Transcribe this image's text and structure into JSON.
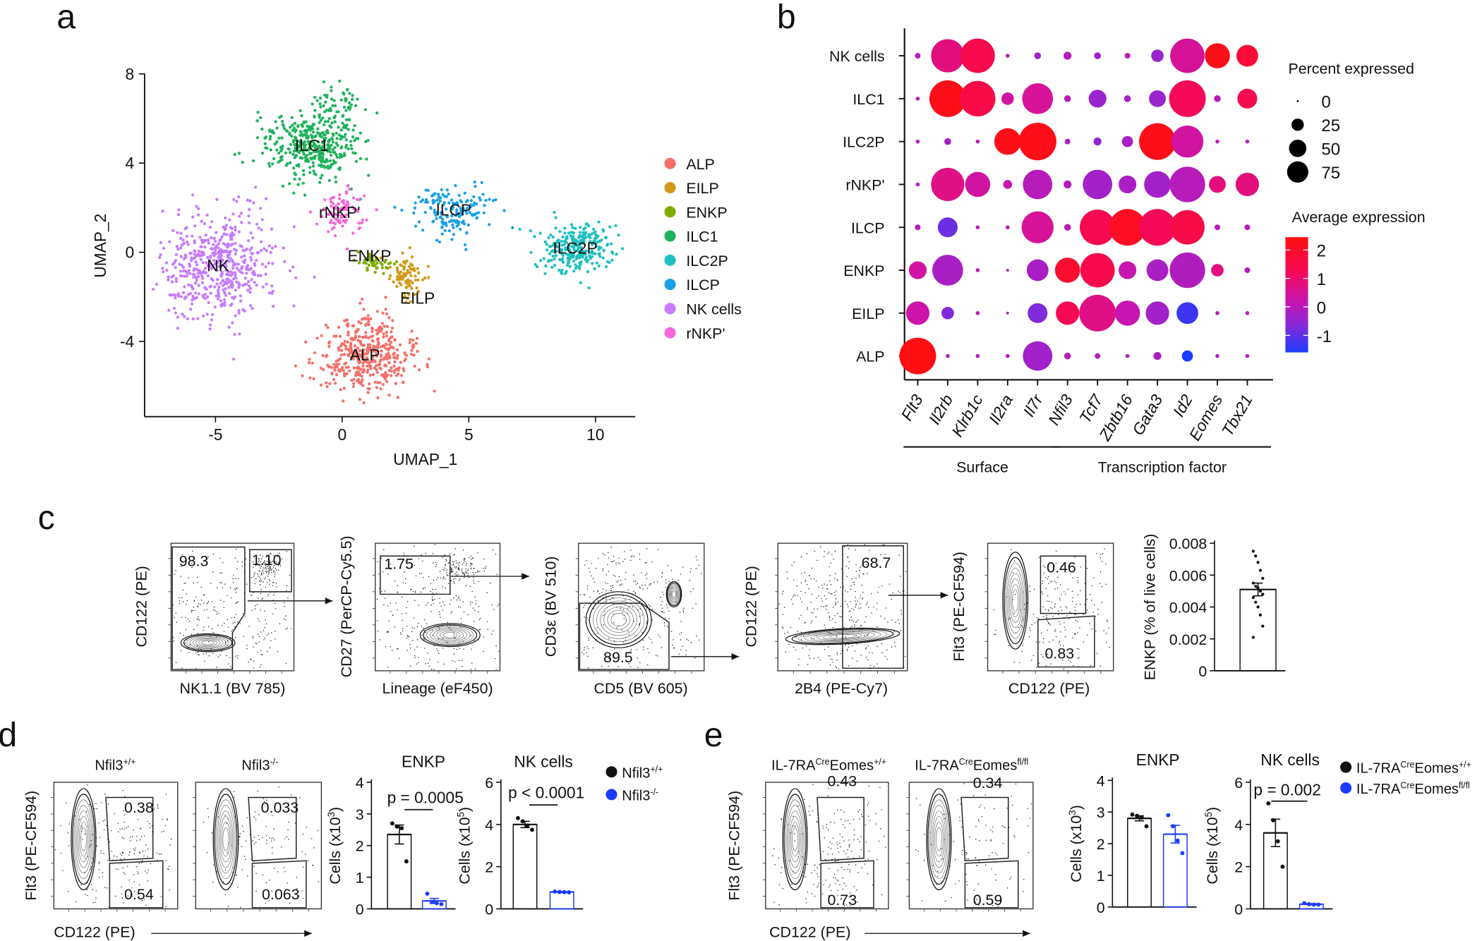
{
  "panel_labels": [
    "a",
    "b",
    "c",
    "d",
    "e"
  ],
  "chart_data": [
    {
      "type": "scatter",
      "panel": "a",
      "xlabel": "UMAP_1",
      "ylabel": "UMAP_2",
      "xlim": [
        -7.8,
        11.6
      ],
      "ylim": [
        -7.4,
        8
      ],
      "xticks": [
        "-5",
        "0",
        "5",
        "10"
      ],
      "yticks": [
        "8",
        "4",
        "0",
        "-4"
      ],
      "legend_position": "right",
      "clusters": [
        {
          "name": "ALP",
          "color": "#f4706a",
          "center": [
            0.9,
            -4.6
          ],
          "spread": [
            0.95,
            0.85
          ],
          "n": 420
        },
        {
          "name": "EILP",
          "color": "#d39a1a",
          "center": [
            2.6,
            -1.2
          ],
          "spread": [
            0.35,
            0.55
          ],
          "n": 90
        },
        {
          "name": "ENKP",
          "color": "#7cae00",
          "center": [
            1.3,
            -0.5
          ],
          "spread": [
            0.3,
            0.25
          ],
          "n": 50
        },
        {
          "name": "ILC1",
          "color": "#1eb35a",
          "center": [
            -1.2,
            4.8
          ],
          "spread": [
            0.95,
            0.8
          ],
          "n": 380
        },
        {
          "name": "ILC2P",
          "color": "#1ec0c0",
          "center": [
            9.2,
            0.2
          ],
          "spread": [
            0.75,
            0.6
          ],
          "n": 260
        },
        {
          "name": "ILCP",
          "color": "#18a0e8",
          "center": [
            4.4,
            1.9
          ],
          "spread": [
            0.8,
            0.55
          ],
          "n": 160
        },
        {
          "name": "NK cells",
          "label": "NK",
          "color": "#c77cff",
          "center": [
            -4.9,
            -0.6
          ],
          "spread": [
            1.1,
            1.2
          ],
          "n": 520
        },
        {
          "name": "rNKP'",
          "color": "#f767d8",
          "center": [
            -0.1,
            1.8
          ],
          "spread": [
            0.45,
            0.5
          ],
          "n": 90
        }
      ]
    },
    {
      "type": "dot",
      "panel": "b",
      "rows": [
        "NK cells",
        "ILC1",
        "ILC2P",
        "rNKP'",
        "ILCP",
        "ENKP",
        "EILP",
        "ALP"
      ],
      "cols": [
        "Flt3",
        "Il2rb",
        "Klrb1c",
        "Il2ra",
        "Il7r",
        "Nfil3",
        "Tcf7",
        "Zbtb16",
        "Gata3",
        "Id2",
        "Eomes",
        "Tbx21"
      ],
      "pct": [
        [
          2,
          70,
          75,
          1,
          3,
          4,
          3,
          2,
          10,
          75,
          40,
          30
        ],
        [
          1,
          85,
          80,
          10,
          60,
          3,
          20,
          3,
          18,
          85,
          3,
          25
        ],
        [
          1,
          3,
          1,
          45,
          90,
          2,
          4,
          8,
          85,
          65,
          1,
          1
        ],
        [
          1,
          70,
          40,
          5,
          55,
          4,
          55,
          20,
          45,
          80,
          18,
          35
        ],
        [
          2,
          25,
          1,
          1,
          65,
          3,
          80,
          85,
          85,
          75,
          2,
          2
        ],
        [
          20,
          60,
          1,
          0.5,
          30,
          40,
          75,
          20,
          30,
          80,
          10,
          2
        ],
        [
          35,
          10,
          1,
          0.5,
          25,
          35,
          85,
          40,
          35,
          30,
          1,
          1
        ],
        [
          85,
          1,
          1,
          1,
          55,
          3,
          2,
          1,
          4,
          8,
          1,
          1
        ]
      ],
      "avg": [
        [
          0,
          0.8,
          1.4,
          0,
          -0.3,
          0,
          -0.3,
          0,
          -0.4,
          0.5,
          2.3,
          1.8
        ],
        [
          0,
          2.3,
          1.5,
          0.4,
          0.5,
          0,
          -0.4,
          -0.2,
          -0.4,
          1.2,
          0,
          1.4
        ],
        [
          0,
          -0.3,
          0,
          2.3,
          2.3,
          0,
          -0.5,
          -0.2,
          2.3,
          0.4,
          0,
          0
        ],
        [
          0,
          0.7,
          0.4,
          0.2,
          0,
          0,
          -0.3,
          -0.2,
          -0.3,
          0,
          0.8,
          0.8
        ],
        [
          0,
          -0.9,
          0,
          0,
          0.5,
          0,
          1.3,
          2.1,
          1.2,
          1.5,
          0,
          0
        ],
        [
          0.4,
          -0.2,
          0,
          0,
          -0.2,
          1.9,
          1.4,
          0.2,
          -0.2,
          -0.1,
          0.8,
          0
        ],
        [
          0.3,
          -0.7,
          0,
          0,
          -0.7,
          1.3,
          0.7,
          0.2,
          -0.3,
          -1.3,
          0,
          0
        ],
        [
          2.4,
          0,
          0,
          0,
          -0.3,
          0,
          0,
          0,
          -0.2,
          -1.6,
          0,
          0
        ]
      ],
      "groups": [
        {
          "label": "Surface",
          "cols": [
            0,
            4
          ]
        },
        {
          "label": "Transcription factor",
          "cols": [
            5,
            11
          ]
        }
      ],
      "size_legend": {
        "title": "Percent expressed",
        "values": [
          "0",
          "25",
          "50",
          "75"
        ]
      },
      "color_legend": {
        "title": "Average expression",
        "ticks": [
          "2",
          "1",
          "0",
          "-1"
        ],
        "range": [
          -1.6,
          2.45
        ]
      }
    },
    {
      "type": "flow",
      "panel": "c",
      "plots": [
        {
          "xlabel": "NK1.1 (BV 785)",
          "ylabel": "CD122 (PE)",
          "gates": [
            "98.3",
            "1.10"
          ]
        },
        {
          "xlabel": "Lineage (eF450)",
          "ylabel": "CD27 (PerCP-Cy5.5)",
          "gates": [
            "1.75"
          ]
        },
        {
          "xlabel": "CD5 (BV 605)",
          "ylabel": "CD3ε (BV 510)",
          "gates": [
            "89.5"
          ]
        },
        {
          "xlabel": "2B4 (PE-Cy7)",
          "ylabel": "CD122 (PE)",
          "gates": [
            "68.7"
          ]
        },
        {
          "xlabel": "CD122 (PE)",
          "ylabel": "Flt3 (PE-CF594)",
          "gates": [
            "0.46",
            "0.83"
          ]
        }
      ]
    },
    {
      "type": "bar",
      "panel": "c",
      "title": "",
      "ylabel": "ENKP (% of live cells)",
      "ylabel_sup": "",
      "ylabel_end": "",
      "yticks": [
        "0",
        "0.002",
        "0.004",
        "0.006",
        "0.008"
      ],
      "ylim": [
        0,
        0.008
      ],
      "groups": [
        {
          "name": "ENKP",
          "mean": 0.0051,
          "sem": 0.0004,
          "color": "#111111",
          "points": [
            0.0075,
            0.0072,
            0.0068,
            0.0063,
            0.0058,
            0.0055,
            0.0053,
            0.0052,
            0.005,
            0.0048,
            0.0046,
            0.0043,
            0.004,
            0.0035,
            0.0028,
            0.0021
          ]
        }
      ]
    },
    {
      "type": "flow",
      "panel": "d",
      "titles": [
        {
          "base": "Nfil3",
          "sup": "+/+"
        },
        {
          "base": "Nfil3",
          "sup": "-/-"
        }
      ],
      "xlabel": "CD122 (PE)",
      "ylabel": "Flt3 (PE-CF594)",
      "plots": [
        {
          "gates": [
            "0.38",
            "0.54"
          ]
        },
        {
          "gates": [
            "0.033",
            "0.063"
          ]
        }
      ]
    },
    {
      "type": "bar",
      "panel": "d",
      "title": "ENKP",
      "ylabel": "Cells (x10",
      "ylabel_sup": "3",
      "ylabel_end": ")",
      "yticks": [
        "0",
        "1",
        "2",
        "3",
        "4"
      ],
      "ylim": [
        0,
        4
      ],
      "pvalue": "p = 0.0005",
      "groups": [
        {
          "name": "Nfil3+/+",
          "mean": 2.35,
          "sem": 0.3,
          "color": "#111111",
          "points": [
            2.7,
            2.6,
            2.55,
            1.5
          ]
        },
        {
          "name": "Nfil3-/-",
          "mean": 0.25,
          "sem": 0.08,
          "color": "#1a3cff",
          "points": [
            0.48,
            0.22,
            0.18,
            0.15
          ]
        }
      ]
    },
    {
      "type": "bar",
      "panel": "d",
      "title": "NK cells",
      "ylabel": "Cells (x10",
      "ylabel_sup": "5",
      "ylabel_end": ")",
      "yticks": [
        "0",
        "2",
        "4",
        "6"
      ],
      "ylim": [
        0,
        6
      ],
      "pvalue": "p < 0.0001",
      "groups": [
        {
          "name": "Nfil3+/+",
          "mean": 4.0,
          "sem": 0.15,
          "color": "#111111",
          "points": [
            4.3,
            4.15,
            3.95,
            3.75
          ]
        },
        {
          "name": "Nfil3-/-",
          "mean": 0.8,
          "sem": 0.03,
          "color": "#1a3cff",
          "points": [
            0.82,
            0.8,
            0.79,
            0.78
          ]
        }
      ]
    },
    {
      "type": "flow",
      "panel": "e",
      "titles": [
        {
          "base": "IL-7RA",
          "sup": "Cre",
          "base2": "Eomes",
          "sup2": "+/+"
        },
        {
          "base": "IL-7RA",
          "sup": "Cre",
          "base2": "Eomes",
          "sup2": "fl/fl"
        }
      ],
      "xlabel": "CD122 (PE)",
      "ylabel": "Flt3 (PE-CF594)",
      "plots": [
        {
          "gates": [
            "0.43",
            "0.73"
          ]
        },
        {
          "gates": [
            "0.34",
            "0.59"
          ]
        }
      ]
    },
    {
      "type": "bar",
      "panel": "e",
      "title": "ENKP",
      "ylabel": "Cells (x10",
      "ylabel_sup": "3",
      "ylabel_end": ")",
      "yticks": [
        "0",
        "1",
        "2",
        "3",
        "4"
      ],
      "ylim": [
        0,
        4
      ],
      "groups": [
        {
          "name": "IL-7RA Cre Eomes +/+",
          "mean": 2.8,
          "sem": 0.08,
          "color": "#111111",
          "points": [
            2.92,
            2.88,
            2.82,
            2.55
          ]
        },
        {
          "name": "IL-7RA Cre Eomes fl/fl",
          "mean": 2.3,
          "sem": 0.28,
          "color": "#1a3cff",
          "points": [
            2.9,
            2.55,
            2.1,
            1.7
          ]
        }
      ]
    },
    {
      "type": "bar",
      "panel": "e",
      "title": "NK cells",
      "ylabel": "Cells (x10",
      "ylabel_sup": "5",
      "ylabel_end": ")",
      "yticks": [
        "0",
        "2",
        "4",
        "6"
      ],
      "ylim": [
        0,
        6
      ],
      "pvalue": "p = 0.002",
      "groups": [
        {
          "name": "IL-7RA Cre Eomes +/+",
          "mean": 3.6,
          "sem": 0.65,
          "color": "#111111",
          "points": [
            5.0,
            4.2,
            3.2,
            2.0
          ]
        },
        {
          "name": "IL-7RA Cre Eomes fl/fl",
          "mean": 0.22,
          "sem": 0.03,
          "color": "#1a3cff",
          "points": [
            0.27,
            0.22,
            0.2,
            0.2
          ]
        }
      ]
    }
  ],
  "legends": {
    "d": [
      {
        "base": "Nfil3",
        "sup": "+/+",
        "color": "#111111"
      },
      {
        "base": "Nfil3",
        "sup": "-/-",
        "color": "#1a3cff"
      }
    ],
    "e": [
      {
        "base": "IL-7RA",
        "sup": "Cre",
        "base2": "Eomes",
        "sup2": "+/+",
        "color": "#111111"
      },
      {
        "base": "IL-7RA",
        "sup": "Cre",
        "base2": "Eomes",
        "sup2": "fl/fl",
        "color": "#1a3cff"
      }
    ]
  }
}
